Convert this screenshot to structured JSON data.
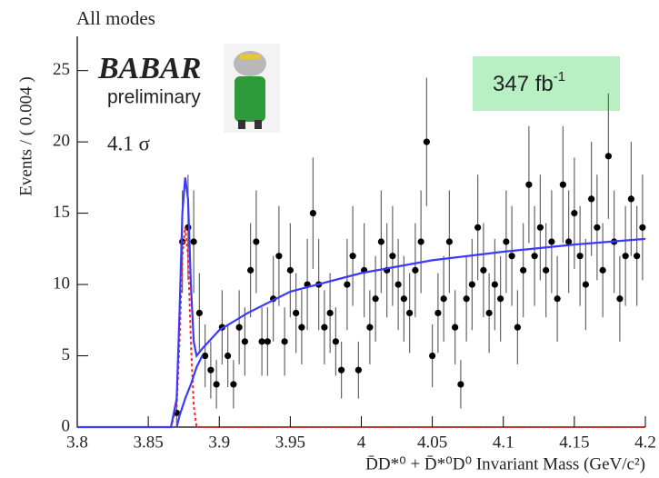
{
  "chart_data": {
    "type": "scatter",
    "title": "All modes",
    "logo": "BABAR",
    "logo_subtitle": "preliminary",
    "luminosity": {
      "text": "347 fb",
      "sup": "-1"
    },
    "significance": "4.1 σ",
    "xlabel": "D̄D*⁰ + D̄*⁰D⁰ Invariant Mass (GeV/c²)",
    "ylabel": "Events / ( 0.004 )",
    "xlim": [
      3.8,
      4.2
    ],
    "ylim": [
      0,
      27.4
    ],
    "xticks": [
      3.8,
      3.85,
      3.9,
      3.95,
      4,
      4.05,
      4.1,
      4.15,
      4.2
    ],
    "yticks": [
      0,
      5,
      10,
      15,
      20,
      25
    ],
    "series": [
      {
        "style": "errorbar",
        "color": "#000000",
        "x": [
          3.87,
          3.874,
          3.878,
          3.882,
          3.886,
          3.89,
          3.894,
          3.898,
          3.902,
          3.906,
          3.91,
          3.914,
          3.918,
          3.922,
          3.926,
          3.93,
          3.934,
          3.938,
          3.942,
          3.946,
          3.95,
          3.954,
          3.958,
          3.962,
          3.966,
          3.97,
          3.974,
          3.978,
          3.982,
          3.986,
          3.99,
          3.994,
          3.998,
          4.002,
          4.006,
          4.01,
          4.014,
          4.018,
          4.022,
          4.026,
          4.03,
          4.034,
          4.038,
          4.042,
          4.046,
          4.05,
          4.054,
          4.058,
          4.062,
          4.066,
          4.07,
          4.074,
          4.078,
          4.082,
          4.086,
          4.09,
          4.094,
          4.098,
          4.102,
          4.106,
          4.11,
          4.114,
          4.118,
          4.122,
          4.126,
          4.13,
          4.134,
          4.138,
          4.142,
          4.146,
          4.15,
          4.154,
          4.158,
          4.162,
          4.166,
          4.17,
          4.174,
          4.178,
          4.182,
          4.186,
          4.19,
          4.194,
          4.198
        ],
        "values": [
          1,
          13,
          14,
          13,
          8,
          5,
          4,
          3,
          7,
          5,
          3,
          7,
          6,
          11,
          13,
          6,
          6,
          9,
          12,
          6,
          11,
          8,
          7,
          10,
          15,
          10,
          7,
          8,
          6,
          4,
          10,
          12,
          4,
          11,
          7,
          9,
          13,
          11,
          12,
          10,
          9,
          8,
          11,
          13,
          20,
          5,
          8,
          9,
          13,
          7,
          3,
          9,
          10,
          14,
          11,
          8,
          10,
          9,
          13,
          12,
          7,
          11,
          17,
          12,
          14,
          11,
          13,
          9,
          17,
          13,
          15,
          12,
          10,
          16,
          14,
          11,
          19,
          13,
          9,
          12,
          16,
          12,
          14
        ],
        "errors": [
          1,
          3.6,
          3.7,
          3.6,
          2.8,
          2.2,
          2,
          1.7,
          2.6,
          2.2,
          1.7,
          2.6,
          2.4,
          3.3,
          3.6,
          2.4,
          2.4,
          3,
          3.5,
          2.4,
          3.3,
          2.8,
          2.6,
          3.2,
          3.9,
          3.2,
          2.6,
          2.8,
          2.4,
          2,
          3.2,
          3.5,
          2,
          3.3,
          2.6,
          3,
          3.6,
          3.3,
          3.5,
          3.2,
          3,
          2.8,
          3.3,
          3.6,
          4.5,
          2.2,
          2.8,
          3,
          3.6,
          2.6,
          1.7,
          3,
          3.2,
          3.7,
          3.3,
          2.8,
          3.2,
          3,
          3.6,
          3.5,
          2.6,
          3.3,
          4.1,
          3.5,
          3.7,
          3.3,
          3.6,
          3,
          4.1,
          3.6,
          3.9,
          3.5,
          3.2,
          4,
          3.7,
          3.3,
          4.4,
          3.6,
          3,
          3.5,
          4,
          3.5,
          3.7
        ]
      },
      {
        "style": "line",
        "color": "#ff2020",
        "dash": true,
        "x": [
          3.8,
          3.866,
          3.87,
          3.872,
          3.874,
          3.876,
          3.878,
          3.88,
          3.882,
          3.884,
          4.2
        ],
        "values": [
          0,
          0,
          1.5,
          6,
          12,
          14,
          12,
          6,
          1.5,
          0,
          0
        ]
      },
      {
        "style": "line",
        "color": "#3a3aff",
        "dash": false,
        "x": [
          3.87,
          3.872,
          3.876,
          3.88,
          3.884,
          3.888
        ],
        "values": [
          0,
          0.8,
          2,
          3,
          4.2,
          5
        ]
      },
      {
        "style": "line",
        "color": "#3a3aff",
        "dash": false,
        "x": [
          3.8,
          3.866,
          3.87,
          3.872,
          3.874,
          3.876,
          3.878,
          3.88,
          3.882,
          3.884,
          3.888,
          3.9,
          3.92,
          3.95,
          4,
          4.05,
          4.1,
          4.15,
          4.2
        ],
        "values": [
          0,
          0,
          2,
          8,
          15,
          17.5,
          16,
          10,
          6,
          5,
          5.5,
          6.8,
          8,
          9.5,
          10.8,
          11.7,
          12.3,
          12.8,
          13.2
        ]
      }
    ]
  }
}
